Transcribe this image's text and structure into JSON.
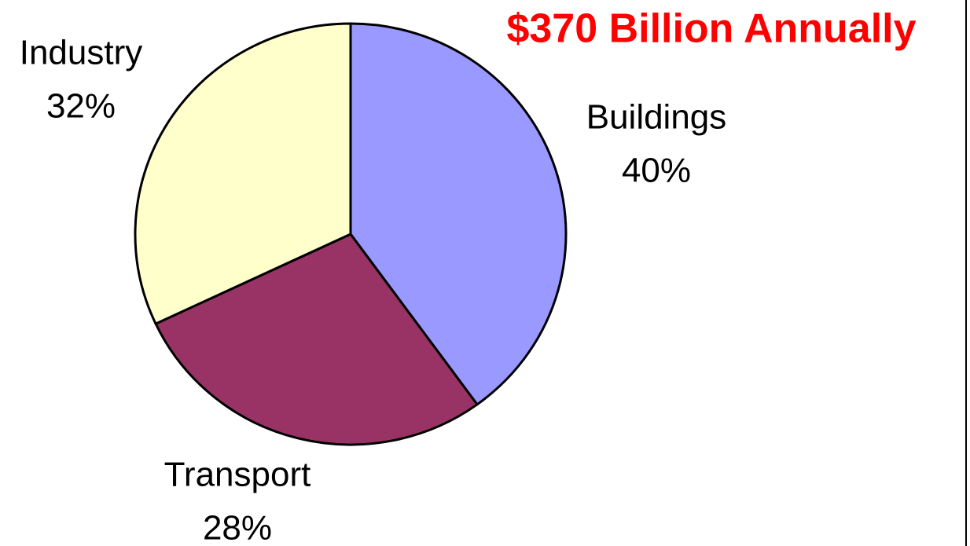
{
  "chart_data": {
    "type": "pie",
    "title": "$370 Billion Annually",
    "categories": [
      "Buildings",
      "Transport",
      "Industry"
    ],
    "values": [
      40,
      28,
      32
    ],
    "value_labels": [
      "40%",
      "28%",
      "32%"
    ],
    "colors": [
      "#9999ff",
      "#993366",
      "#ffffcc"
    ],
    "title_color": "#ff0000"
  }
}
